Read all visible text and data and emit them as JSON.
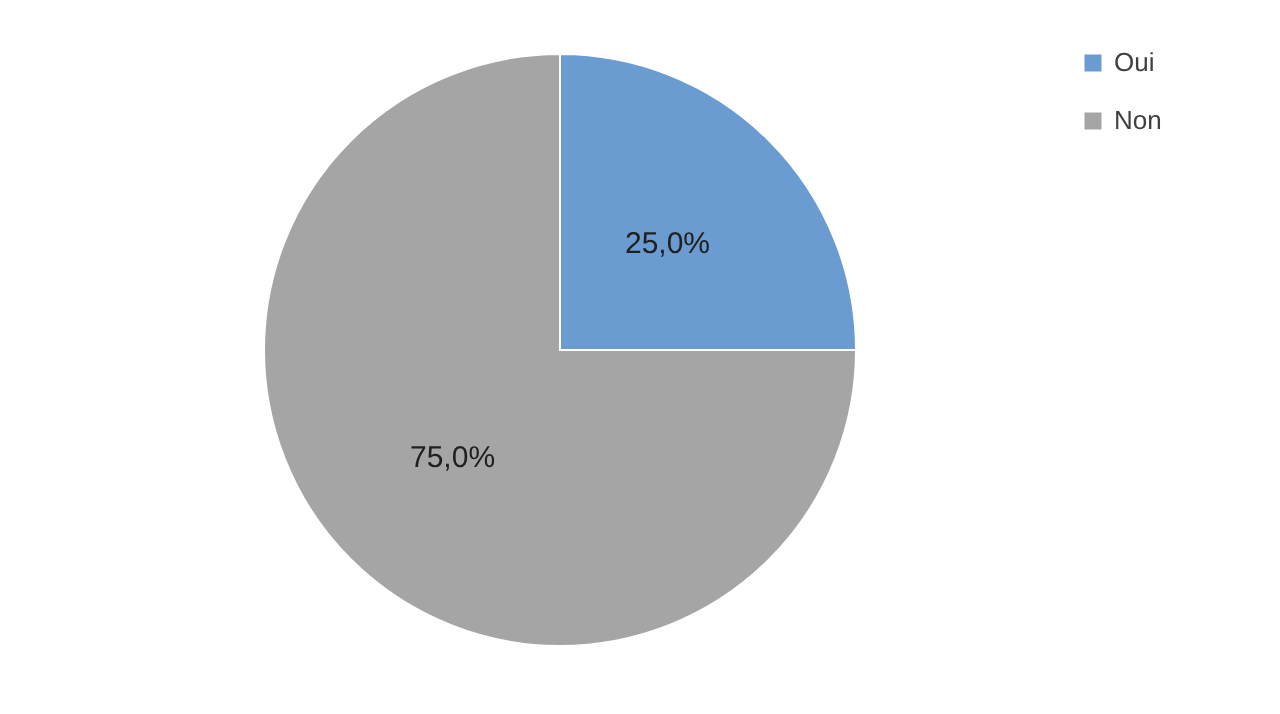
{
  "chart_data": {
    "type": "pie",
    "categories": [
      "Oui",
      "Non"
    ],
    "values": [
      25,
      75
    ],
    "colors": [
      "#6a9bd1",
      "#a5a5a5"
    ],
    "value_labels": [
      "25,0%",
      "75,0%"
    ],
    "legend": "right"
  }
}
